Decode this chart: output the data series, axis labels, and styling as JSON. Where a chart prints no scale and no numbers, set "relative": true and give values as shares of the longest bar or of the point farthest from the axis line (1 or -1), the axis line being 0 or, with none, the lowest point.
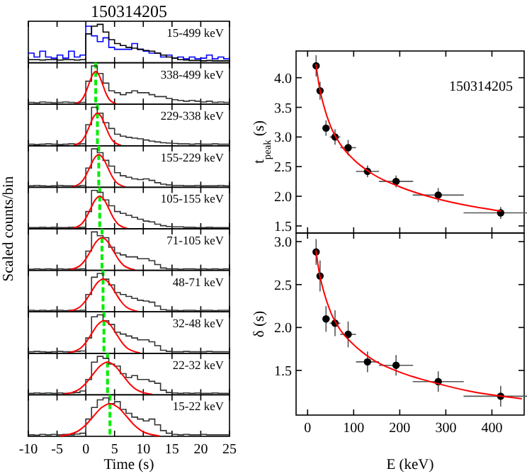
{
  "chart_data": [
    {
      "type": "step",
      "title": "150314205",
      "relative": true,
      "tick_labels": false,
      "xlim": [
        -10,
        25
      ],
      "xticks": [
        -10,
        -5,
        0,
        5,
        10,
        15,
        20,
        25
      ],
      "annotations": [
        "15-499 keV"
      ],
      "x": [
        -10,
        -9,
        -8,
        -7,
        -6,
        -5,
        -4,
        -3,
        -2,
        -1,
        0,
        1,
        2,
        3,
        4,
        5,
        6,
        7,
        8,
        9,
        10,
        11,
        12,
        13,
        14,
        15,
        16,
        17,
        18,
        19,
        20,
        21,
        22,
        23,
        24,
        25
      ],
      "series": [
        {
          "color": "#0000ff",
          "values": [
            0.25,
            0.15,
            0.3,
            0.15,
            0.12,
            0.2,
            0.12,
            0.3,
            0.15,
            0.2,
            0.95,
            0.7,
            0.55,
            0.65,
            0.4,
            0.35,
            0.35,
            0.35,
            0.5,
            0.35,
            0.3,
            0.25,
            0.25,
            0.15,
            0.2,
            0.12,
            0.15,
            0.1,
            0.15,
            0.1,
            0.12,
            0.2,
            0.1,
            0.15,
            0.1,
            0.1
          ]
        },
        {
          "color": "#000000",
          "values": [
            0.08,
            0.08,
            0.07,
            0.08,
            0.08,
            0.07,
            0.08,
            0.08,
            0.07,
            0.08,
            0.75,
            0.95,
            1.0,
            0.8,
            0.6,
            0.5,
            0.45,
            0.4,
            0.38,
            0.35,
            0.32,
            0.3,
            0.25,
            0.2,
            0.15,
            0.12,
            0.08,
            0.07,
            0.06,
            0.06,
            0.05,
            0.06,
            0.05,
            0.05,
            0.05,
            0.05
          ]
        }
      ]
    },
    {
      "type": "step",
      "relative": true,
      "tick_labels": false,
      "xlim": [
        -10,
        25
      ],
      "xticks": [
        -10,
        -5,
        0,
        5,
        10,
        15,
        20,
        25
      ],
      "annotations": [
        "338-499 keV"
      ],
      "ref_lines": [
        {
          "axis": "x",
          "value": 1.72,
          "color": "#00ee00",
          "line_style": "dashed"
        }
      ],
      "x": [
        -10,
        -9,
        -8,
        -7,
        -6,
        -5,
        -4,
        -3,
        -2,
        -1,
        0,
        1,
        2,
        3,
        4,
        5,
        6,
        7,
        8,
        9,
        10,
        11,
        12,
        13,
        14,
        15,
        16,
        17,
        18,
        19,
        20,
        21,
        22,
        23,
        24,
        25
      ],
      "series": [
        {
          "color": "#333333",
          "values": [
            0.05,
            0.04,
            0.06,
            0.05,
            0.04,
            0.05,
            0.06,
            0.05,
            0.04,
            0.05,
            0.6,
            1.0,
            0.8,
            0.55,
            0.35,
            0.3,
            0.25,
            0.3,
            0.35,
            0.3,
            0.3,
            0.25,
            0.2,
            0.2,
            0.15,
            0.12,
            0.1,
            0.08,
            0.1,
            0.08,
            0.06,
            0.08,
            0.05,
            0.06,
            0.05,
            0.05
          ]
        },
        {
          "type": "line",
          "color": "#ff0000",
          "x": [
            -1.88,
            -0.68,
            -0.08,
            0.52,
            1.12,
            1.72,
            2.32,
            2.92,
            3.52,
            4.12,
            5.32
          ],
          "values": [
            0.01,
            0.12,
            0.28,
            0.52,
            0.75,
            0.85,
            0.75,
            0.52,
            0.28,
            0.12,
            0.01
          ]
        }
      ]
    },
    {
      "type": "step",
      "relative": true,
      "tick_labels": false,
      "xlim": [
        -10,
        25
      ],
      "xticks": [
        -10,
        -5,
        0,
        5,
        10,
        15,
        20,
        25
      ],
      "annotations": [
        "229-338 keV"
      ],
      "ref_lines": [
        {
          "axis": "x",
          "value": 2.02,
          "color": "#00ee00",
          "line_style": "dashed"
        }
      ],
      "x": [
        -10,
        -9,
        -8,
        -7,
        -6,
        -5,
        -4,
        -3,
        -2,
        -1,
        0,
        1,
        2,
        3,
        4,
        5,
        6,
        7,
        8,
        9,
        10,
        11,
        12,
        13,
        14,
        15,
        16,
        17,
        18,
        19,
        20,
        21,
        22,
        23,
        24,
        25
      ],
      "series": [
        {
          "color": "#333333",
          "values": [
            0.04,
            0.03,
            0.04,
            0.05,
            0.04,
            0.03,
            0.04,
            0.05,
            0.04,
            0.05,
            0.55,
            1.0,
            0.85,
            0.6,
            0.45,
            0.3,
            0.25,
            0.22,
            0.2,
            0.18,
            0.15,
            0.12,
            0.1,
            0.08,
            0.07,
            0.06,
            0.05,
            0.05,
            0.04,
            0.05,
            0.04,
            0.04,
            0.05,
            0.04,
            0.04,
            0.04
          ]
        },
        {
          "type": "line",
          "color": "#ff0000",
          "x": [
            -2.09,
            -0.72,
            -0.04,
            0.65,
            1.34,
            2.02,
            2.71,
            3.39,
            4.08,
            4.76,
            6.13
          ],
          "values": [
            0.01,
            0.12,
            0.28,
            0.52,
            0.75,
            0.85,
            0.75,
            0.52,
            0.28,
            0.12,
            0.01
          ]
        }
      ]
    },
    {
      "type": "step",
      "relative": true,
      "tick_labels": false,
      "xlim": [
        -10,
        25
      ],
      "xticks": [
        -10,
        -5,
        0,
        5,
        10,
        15,
        20,
        25
      ],
      "annotations": [
        "155-229 keV"
      ],
      "ref_lines": [
        {
          "axis": "x",
          "value": 2.25,
          "color": "#00ee00",
          "line_style": "dashed"
        }
      ],
      "x": [
        -10,
        -9,
        -8,
        -7,
        -6,
        -5,
        -4,
        -3,
        -2,
        -1,
        0,
        1,
        2,
        3,
        4,
        5,
        6,
        7,
        8,
        9,
        10,
        11,
        12,
        13,
        14,
        15,
        16,
        17,
        18,
        19,
        20,
        21,
        22,
        23,
        24,
        25
      ],
      "series": [
        {
          "color": "#333333",
          "values": [
            0.04,
            0.05,
            0.04,
            0.03,
            0.04,
            0.05,
            0.04,
            0.04,
            0.03,
            0.05,
            0.5,
            1.0,
            0.9,
            0.7,
            0.55,
            0.38,
            0.3,
            0.26,
            0.22,
            0.2,
            0.22,
            0.18,
            0.12,
            0.08,
            0.06,
            0.05,
            0.05,
            0.04,
            0.04,
            0.05,
            0.04,
            0.04,
            0.04,
            0.05,
            0.04,
            0.04
          ]
        },
        {
          "type": "line",
          "color": "#ff0000",
          "x": [
            -2.43,
            -0.87,
            -0.09,
            0.69,
            1.47,
            2.25,
            3.03,
            3.81,
            4.59,
            5.37,
            6.93
          ],
          "values": [
            0.01,
            0.12,
            0.28,
            0.52,
            0.75,
            0.85,
            0.75,
            0.52,
            0.28,
            0.12,
            0.01
          ]
        }
      ]
    },
    {
      "type": "step",
      "relative": true,
      "tick_labels": false,
      "ylabel": "Scaled counts/bin",
      "xlim": [
        -10,
        25
      ],
      "xticks": [
        -10,
        -5,
        0,
        5,
        10,
        15,
        20,
        25
      ],
      "annotations": [
        "105-155 keV"
      ],
      "ref_lines": [
        {
          "axis": "x",
          "value": 2.42,
          "color": "#00ee00",
          "line_style": "dashed"
        }
      ],
      "x": [
        -10,
        -9,
        -8,
        -7,
        -6,
        -5,
        -4,
        -3,
        -2,
        -1,
        0,
        1,
        2,
        3,
        4,
        5,
        6,
        7,
        8,
        9,
        10,
        11,
        12,
        13,
        14,
        15,
        16,
        17,
        18,
        19,
        20,
        21,
        22,
        23,
        24,
        25
      ],
      "series": [
        {
          "color": "#333333",
          "values": [
            0.03,
            0.03,
            0.04,
            0.03,
            0.04,
            0.03,
            0.03,
            0.04,
            0.03,
            0.04,
            0.45,
            1.0,
            0.95,
            0.75,
            0.6,
            0.45,
            0.4,
            0.35,
            0.3,
            0.25,
            0.2,
            0.18,
            0.12,
            0.08,
            0.06,
            0.05,
            0.05,
            0.04,
            0.04,
            0.03,
            0.03,
            0.04,
            0.03,
            0.03,
            0.03,
            0.03
          ]
        },
        {
          "type": "line",
          "color": "#ff0000",
          "x": [
            -2.38,
            -0.78,
            0.02,
            0.82,
            1.62,
            2.42,
            3.22,
            4.02,
            4.82,
            5.62,
            7.22
          ],
          "values": [
            0.01,
            0.12,
            0.28,
            0.52,
            0.75,
            0.85,
            0.75,
            0.52,
            0.28,
            0.12,
            0.01
          ]
        }
      ]
    },
    {
      "type": "step",
      "relative": true,
      "tick_labels": false,
      "xlim": [
        -10,
        25
      ],
      "xticks": [
        -10,
        -5,
        0,
        5,
        10,
        15,
        20,
        25
      ],
      "annotations": [
        "71-105 keV"
      ],
      "ref_lines": [
        {
          "axis": "x",
          "value": 2.82,
          "color": "#00ee00",
          "line_style": "dashed"
        }
      ],
      "x": [
        -10,
        -9,
        -8,
        -7,
        -6,
        -5,
        -4,
        -3,
        -2,
        -1,
        0,
        1,
        2,
        3,
        4,
        5,
        6,
        7,
        8,
        9,
        10,
        11,
        12,
        13,
        14,
        15,
        16,
        17,
        18,
        19,
        20,
        21,
        22,
        23,
        24,
        25
      ],
      "series": [
        {
          "color": "#333333",
          "values": [
            0.03,
            0.04,
            0.03,
            0.04,
            0.03,
            0.04,
            0.03,
            0.04,
            0.03,
            0.04,
            0.5,
            1.0,
            0.9,
            0.85,
            0.6,
            0.45,
            0.4,
            0.35,
            0.35,
            0.3,
            0.3,
            0.25,
            0.15,
            0.06,
            0.04,
            0.04,
            0.03,
            0.04,
            0.04,
            0.03,
            0.04,
            0.03,
            0.04,
            0.03,
            0.04,
            0.04
          ]
        },
        {
          "type": "line",
          "color": "#ff0000",
          "x": [
            -2.94,
            -1.02,
            -0.06,
            0.9,
            1.86,
            2.82,
            3.78,
            4.74,
            5.7,
            6.66,
            8.58
          ],
          "values": [
            0.01,
            0.12,
            0.28,
            0.52,
            0.75,
            0.85,
            0.75,
            0.52,
            0.28,
            0.12,
            0.01
          ]
        }
      ]
    },
    {
      "type": "step",
      "relative": true,
      "tick_labels": false,
      "xlim": [
        -10,
        25
      ],
      "xticks": [
        -10,
        -5,
        0,
        5,
        10,
        15,
        20,
        25
      ],
      "annotations": [
        "48-71 keV"
      ],
      "ref_lines": [
        {
          "axis": "x",
          "value": 3.0,
          "color": "#00ee00",
          "line_style": "dashed"
        }
      ],
      "x": [
        -10,
        -9,
        -8,
        -7,
        -6,
        -5,
        -4,
        -3,
        -2,
        -1,
        0,
        1,
        2,
        3,
        4,
        5,
        6,
        7,
        8,
        9,
        10,
        11,
        12,
        13,
        14,
        15,
        16,
        17,
        18,
        19,
        20,
        21,
        22,
        23,
        24,
        25
      ],
      "series": [
        {
          "color": "#333333",
          "values": [
            0.04,
            0.03,
            0.04,
            0.03,
            0.04,
            0.04,
            0.03,
            0.04,
            0.03,
            0.04,
            0.45,
            0.9,
            1.0,
            0.85,
            0.7,
            0.5,
            0.45,
            0.4,
            0.35,
            0.3,
            0.28,
            0.25,
            0.15,
            0.06,
            0.04,
            0.04,
            0.03,
            0.04,
            0.04,
            0.03,
            0.04,
            0.04,
            0.03,
            0.04,
            0.04,
            0.04
          ]
        },
        {
          "type": "line",
          "color": "#ff0000",
          "x": [
            -3.15,
            -1.1,
            -0.08,
            0.95,
            1.98,
            3.0,
            4.03,
            5.05,
            6.08,
            7.1,
            9.15
          ],
          "values": [
            0.01,
            0.12,
            0.28,
            0.52,
            0.75,
            0.85,
            0.75,
            0.52,
            0.28,
            0.12,
            0.01
          ]
        }
      ]
    },
    {
      "type": "step",
      "relative": true,
      "tick_labels": false,
      "xlim": [
        -10,
        25
      ],
      "xticks": [
        -10,
        -5,
        0,
        5,
        10,
        15,
        20,
        25
      ],
      "annotations": [
        "32-48 keV"
      ],
      "ref_lines": [
        {
          "axis": "x",
          "value": 3.15,
          "color": "#00ee00",
          "line_style": "dashed"
        }
      ],
      "x": [
        -10,
        -9,
        -8,
        -7,
        -6,
        -5,
        -4,
        -3,
        -2,
        -1,
        0,
        1,
        2,
        3,
        4,
        5,
        6,
        7,
        8,
        9,
        10,
        11,
        12,
        13,
        14,
        15,
        16,
        17,
        18,
        19,
        20,
        21,
        22,
        23,
        24,
        25
      ],
      "series": [
        {
          "color": "#333333",
          "values": [
            0.04,
            0.05,
            0.04,
            0.03,
            0.04,
            0.05,
            0.04,
            0.04,
            0.05,
            0.06,
            0.4,
            0.95,
            1.0,
            0.85,
            0.75,
            0.55,
            0.5,
            0.45,
            0.4,
            0.35,
            0.35,
            0.3,
            0.2,
            0.08,
            0.05,
            0.04,
            0.04,
            0.05,
            0.04,
            0.04,
            0.04,
            0.05,
            0.04,
            0.04,
            0.04,
            0.04
          ]
        },
        {
          "type": "line",
          "color": "#ff0000",
          "x": [
            -3.15,
            -1.05,
            0,
            1.05,
            2.1,
            3.15,
            4.2,
            5.25,
            6.3,
            7.35,
            9.45
          ],
          "values": [
            0.01,
            0.12,
            0.28,
            0.52,
            0.75,
            0.85,
            0.75,
            0.52,
            0.28,
            0.12,
            0.01
          ]
        }
      ]
    },
    {
      "type": "step",
      "relative": true,
      "tick_labels": false,
      "xlim": [
        -10,
        25
      ],
      "xticks": [
        -10,
        -5,
        0,
        5,
        10,
        15,
        20,
        25
      ],
      "annotations": [
        "22-32 keV"
      ],
      "ref_lines": [
        {
          "axis": "x",
          "value": 3.78,
          "color": "#00ee00",
          "line_style": "dashed"
        }
      ],
      "x": [
        -10,
        -9,
        -8,
        -7,
        -6,
        -5,
        -4,
        -3,
        -2,
        -1,
        0,
        1,
        2,
        3,
        4,
        5,
        6,
        7,
        8,
        9,
        10,
        11,
        12,
        13,
        14,
        15,
        16,
        17,
        18,
        19,
        20,
        21,
        22,
        23,
        24,
        25
      ],
      "series": [
        {
          "color": "#333333",
          "values": [
            0.04,
            0.05,
            0.04,
            0.05,
            0.04,
            0.05,
            0.04,
            0.05,
            0.06,
            0.1,
            0.4,
            0.85,
            1.0,
            0.95,
            0.8,
            0.75,
            0.55,
            0.45,
            0.5,
            0.4,
            0.4,
            0.35,
            0.3,
            0.12,
            0.06,
            0.05,
            0.04,
            0.05,
            0.04,
            0.05,
            0.04,
            0.04,
            0.05,
            0.04,
            0.04,
            0.04
          ]
        },
        {
          "type": "line",
          "color": "#ff0000",
          "x": [
            -4.02,
            -1.42,
            -0.12,
            1.18,
            2.48,
            3.78,
            5.08,
            6.38,
            7.68,
            8.98,
            11.58
          ],
          "values": [
            0.01,
            0.12,
            0.28,
            0.52,
            0.75,
            0.85,
            0.75,
            0.52,
            0.28,
            0.12,
            0.01
          ]
        }
      ]
    },
    {
      "type": "step",
      "relative": true,
      "tick_labels": "x",
      "xlabel": "Time (s)",
      "xlim": [
        -10,
        25
      ],
      "xticks": [
        -10,
        -5,
        0,
        5,
        10,
        15,
        20,
        25
      ],
      "annotations": [
        "15-22 keV"
      ],
      "ref_lines": [
        {
          "axis": "x",
          "value": 4.2,
          "color": "#00ee00",
          "line_style": "dashed"
        }
      ],
      "x": [
        -10,
        -9,
        -8,
        -7,
        -6,
        -5,
        -4,
        -3,
        -2,
        -1,
        0,
        1,
        2,
        3,
        4,
        5,
        6,
        7,
        8,
        9,
        10,
        11,
        12,
        13,
        14,
        15,
        16,
        17,
        18,
        19,
        20,
        21,
        22,
        23,
        24,
        25
      ],
      "series": [
        {
          "color": "#333333",
          "values": [
            0.04,
            0.03,
            0.05,
            0.04,
            0.05,
            0.04,
            0.05,
            0.04,
            0.06,
            0.08,
            0.45,
            0.75,
            0.95,
            1.0,
            0.85,
            0.9,
            0.7,
            0.6,
            0.5,
            0.45,
            0.4,
            0.45,
            0.3,
            0.15,
            0.08,
            0.05,
            0.04,
            0.05,
            0.04,
            0.04,
            0.05,
            0.04,
            0.04,
            0.04,
            0.04,
            0.04
          ]
        },
        {
          "type": "line",
          "color": "#ff0000",
          "x": [
            -4.44,
            -1.56,
            -0.12,
            1.32,
            2.76,
            4.2,
            5.64,
            7.08,
            8.52,
            9.96,
            12.84
          ],
          "values": [
            0.01,
            0.12,
            0.28,
            0.52,
            0.75,
            0.85,
            0.75,
            0.52,
            0.28,
            0.12,
            0.01
          ]
        }
      ]
    },
    {
      "type": "scatter",
      "tick_labels": "y",
      "ylabel": "t$_{peak}$ (s)",
      "annotations": [
        "150314205"
      ],
      "xlim": [
        -25,
        470
      ],
      "xticks": [
        0,
        100,
        200,
        300,
        400
      ],
      "ylim": [
        1.38,
        4.45
      ],
      "yticks": [
        {
          "value": 1.5,
          "label": "1.5"
        },
        {
          "value": 2,
          "label": "2.0"
        },
        {
          "value": 2.5,
          "label": "2.5"
        },
        {
          "value": 3,
          "label": "3.0"
        },
        {
          "value": 3.5,
          "label": "3.5"
        },
        {
          "value": 4,
          "label": "4.0"
        }
      ],
      "x": [
        18.5,
        27,
        40,
        59.5,
        88,
        130,
        192,
        283.5,
        419
      ],
      "series": [
        {
          "color": "#000000",
          "marker": "circle",
          "values": [
            4.2,
            3.78,
            3.15,
            3.0,
            2.82,
            2.42,
            2.25,
            2.02,
            1.72
          ],
          "errors": [
            0.18,
            0.15,
            0.13,
            0.13,
            0.13,
            0.1,
            0.1,
            0.12,
            0.1
          ],
          "xerrors": [
            3.5,
            5,
            8,
            11.5,
            17,
            25,
            37,
            55.5,
            80.5
          ]
        },
        {
          "type": "line",
          "color": "#ff0000",
          "x": [
            18,
            25,
            35,
            50,
            70,
            100,
            140,
            200,
            280,
            350,
            420
          ],
          "values": [
            4.23,
            3.87,
            3.53,
            3.18,
            2.89,
            2.62,
            2.38,
            2.16,
            1.96,
            1.84,
            1.75
          ]
        }
      ]
    },
    {
      "type": "scatter",
      "ylabel": "δ (s)",
      "xlabel": "E (keV)",
      "xlim": [
        -25,
        470
      ],
      "xticks": [
        0,
        100,
        200,
        300,
        400
      ],
      "ylim": [
        0.98,
        3.1
      ],
      "yticks": [
        {
          "value": 1.5,
          "label": "1.5"
        },
        {
          "value": 2,
          "label": "2.0"
        },
        {
          "value": 2.5,
          "label": "2.5"
        },
        {
          "value": 3,
          "label": "3.0"
        }
      ],
      "x": [
        18.5,
        27,
        40,
        59.5,
        88,
        130,
        192,
        283.5,
        419
      ],
      "series": [
        {
          "color": "#000000",
          "marker": "circle",
          "values": [
            2.88,
            2.6,
            2.1,
            2.05,
            1.92,
            1.6,
            1.56,
            1.37,
            1.2
          ],
          "errors": [
            0.15,
            0.18,
            0.15,
            0.15,
            0.15,
            0.12,
            0.12,
            0.12,
            0.12
          ],
          "xerrors": [
            3.5,
            5,
            8,
            11.5,
            17,
            25,
            37,
            55.5,
            80.5
          ]
        },
        {
          "type": "line",
          "color": "#ff0000",
          "x": [
            18,
            25,
            35,
            50,
            70,
            100,
            140,
            200,
            280,
            350,
            420,
            465
          ],
          "values": [
            2.9,
            2.65,
            2.42,
            2.18,
            1.98,
            1.8,
            1.63,
            1.48,
            1.35,
            1.26,
            1.2,
            1.17
          ]
        }
      ]
    }
  ]
}
